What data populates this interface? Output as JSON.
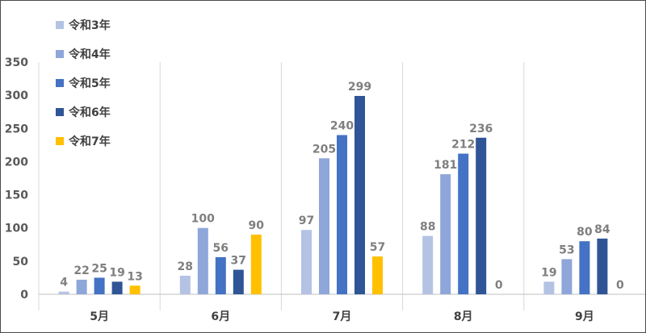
{
  "chart_data": {
    "type": "bar",
    "categories": [
      "5月",
      "6月",
      "7月",
      "8月",
      "9月"
    ],
    "series": [
      {
        "name": "令和3年",
        "color": "#b4c2e4",
        "values": [
          4,
          28,
          97,
          88,
          19
        ]
      },
      {
        "name": "令和4年",
        "color": "#8ea6d9",
        "values": [
          22,
          100,
          205,
          181,
          53
        ]
      },
      {
        "name": "令和5年",
        "color": "#4472c4",
        "values": [
          25,
          56,
          240,
          212,
          80
        ]
      },
      {
        "name": "令和6年",
        "color": "#2f5597",
        "values": [
          19,
          37,
          299,
          236,
          84
        ]
      },
      {
        "name": "令和7年",
        "color": "#ffc000",
        "values": [
          13,
          90,
          57,
          0,
          0
        ]
      }
    ],
    "yticks": [
      0,
      50,
      100,
      150,
      200,
      250,
      300,
      350
    ],
    "ylim": [
      0,
      350
    ],
    "xlabel": "",
    "ylabel": "",
    "title": "",
    "legend_position": "top-left",
    "grid": false,
    "category_dividers": true
  }
}
